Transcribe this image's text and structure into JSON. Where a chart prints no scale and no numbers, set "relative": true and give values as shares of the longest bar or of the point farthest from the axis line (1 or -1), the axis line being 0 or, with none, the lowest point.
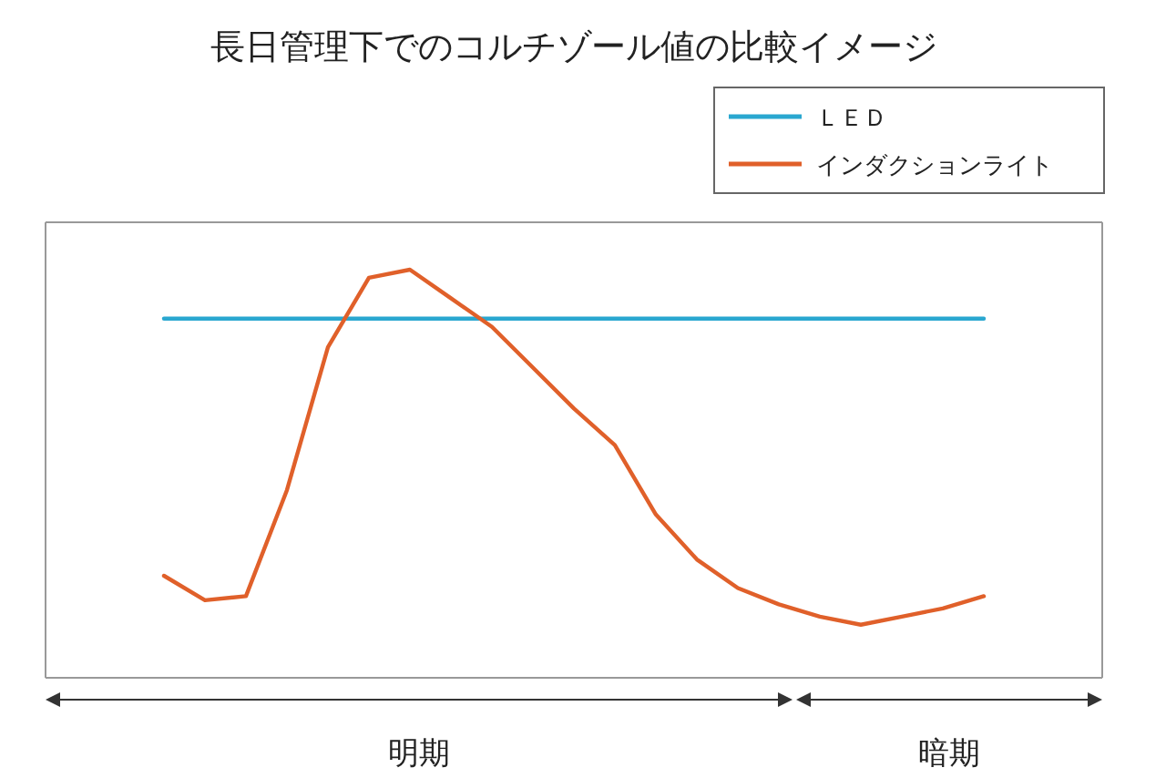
{
  "chart_data": {
    "type": "line",
    "title": "長日管理下でのコルチゾール値の比較イメージ",
    "relative": true,
    "legend": "top right",
    "line_style": "solid",
    "categories": [
      null,
      null,
      null,
      null,
      null,
      null,
      null,
      null,
      null,
      null,
      null,
      null,
      null,
      null,
      null,
      null,
      null,
      null,
      null,
      null,
      null
    ],
    "series": [
      {
        "name": "ＬＥＤ",
        "color": "#2aa7d0",
        "values": [
          0.88,
          0.88,
          0.88,
          0.88,
          0.88,
          0.88,
          0.88,
          0.88,
          0.88,
          0.88,
          0.88,
          0.88,
          0.88,
          0.88,
          0.88,
          0.88,
          0.88,
          0.88,
          0.88,
          0.88,
          0.88
        ]
      },
      {
        "name": "インダクションライト",
        "color": "#e0602a",
        "values": [
          0.25,
          0.19,
          0.2,
          0.46,
          0.81,
          0.98,
          1,
          0.93,
          0.86,
          0.76,
          0.66,
          0.57,
          0.4,
          0.29,
          0.22,
          0.18,
          0.15,
          0.13,
          0.15,
          0.17,
          0.2
        ]
      }
    ],
    "annotations": [
      "明期",
      "暗期"
    ]
  }
}
